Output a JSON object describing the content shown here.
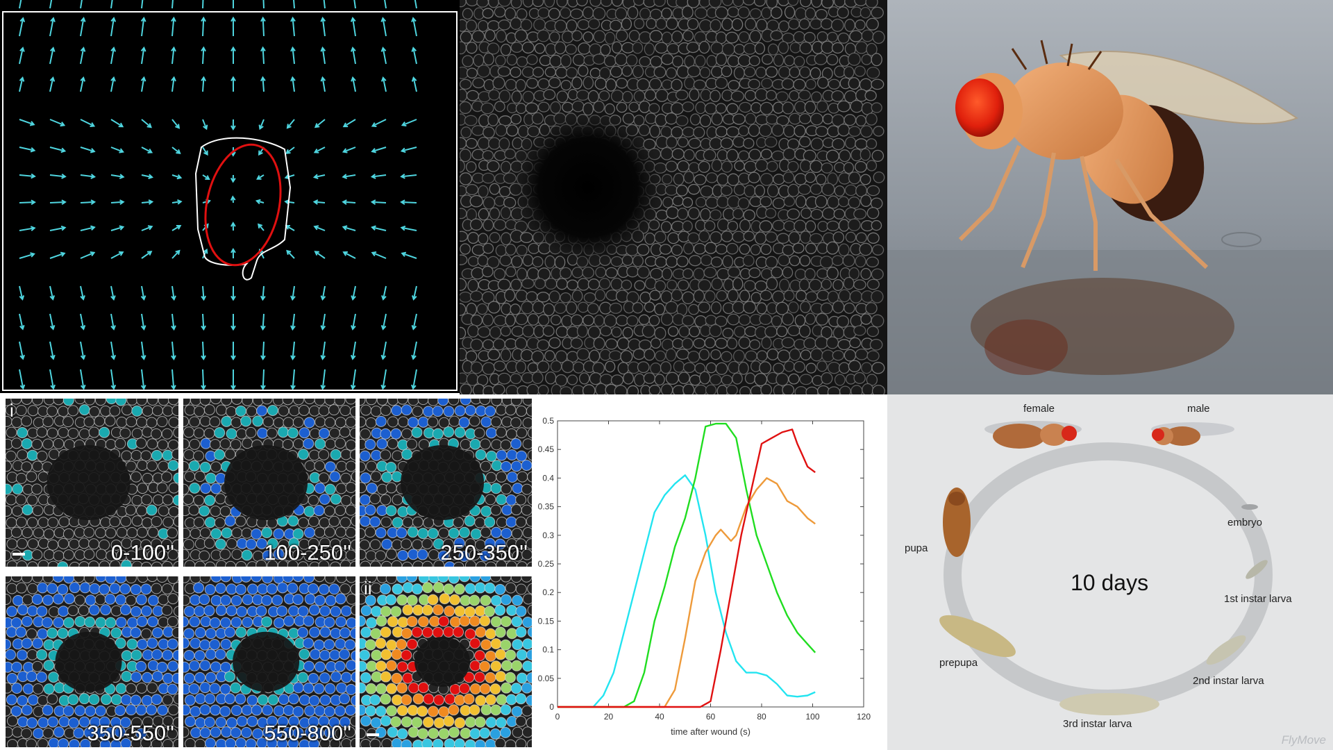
{
  "heatmap": {
    "panel_tag_i": "i",
    "panel_tag_ii": "ii",
    "tiles": [
      {
        "label": "0-100''"
      },
      {
        "label": "100-250''"
      },
      {
        "label": "250-350''"
      },
      {
        "label": "350-550''"
      },
      {
        "label": "550-800''"
      }
    ]
  },
  "chart_data": {
    "type": "line",
    "xlabel": "time after wound (s)",
    "ylabel": "",
    "xlim": [
      0,
      120
    ],
    "ylim": [
      0,
      0.5
    ],
    "xticks": [
      0,
      20,
      40,
      60,
      80,
      100,
      120
    ],
    "yticks": [
      0,
      0.05,
      0.1,
      0.15,
      0.2,
      0.25,
      0.3,
      0.35,
      0.4,
      0.45,
      0.5
    ],
    "grid": false,
    "series": [
      {
        "color": "#22e4f0",
        "x": [
          0,
          14,
          18,
          22,
          26,
          30,
          34,
          38,
          42,
          46,
          50,
          54,
          58,
          62,
          66,
          70,
          74,
          78,
          82,
          86,
          90,
          94,
          98,
          101
        ],
        "y": [
          0,
          0,
          0.02,
          0.06,
          0.13,
          0.2,
          0.27,
          0.34,
          0.37,
          0.39,
          0.405,
          0.38,
          0.3,
          0.2,
          0.13,
          0.08,
          0.06,
          0.06,
          0.055,
          0.04,
          0.02,
          0.018,
          0.02,
          0.026
        ]
      },
      {
        "color": "#20dd20",
        "x": [
          0,
          26,
          30,
          34,
          38,
          42,
          46,
          50,
          54,
          58,
          62,
          66,
          70,
          74,
          78,
          82,
          86,
          90,
          94,
          98,
          101
        ],
        "y": [
          0,
          0,
          0.01,
          0.06,
          0.15,
          0.21,
          0.28,
          0.33,
          0.4,
          0.49,
          0.495,
          0.495,
          0.47,
          0.38,
          0.3,
          0.25,
          0.2,
          0.16,
          0.13,
          0.11,
          0.095
        ]
      },
      {
        "color": "#ee9a3a",
        "x": [
          0,
          42,
          46,
          50,
          54,
          58,
          62,
          64,
          66,
          68,
          70,
          74,
          78,
          82,
          86,
          90,
          94,
          98,
          101
        ],
        "y": [
          0,
          0,
          0.03,
          0.12,
          0.22,
          0.27,
          0.3,
          0.31,
          0.3,
          0.29,
          0.3,
          0.35,
          0.38,
          0.4,
          0.39,
          0.36,
          0.35,
          0.33,
          0.32
        ]
      },
      {
        "color": "#e01010",
        "x": [
          0,
          56,
          60,
          64,
          68,
          72,
          76,
          80,
          84,
          88,
          92,
          94,
          96,
          98,
          101
        ],
        "y": [
          0,
          0,
          0.01,
          0.1,
          0.2,
          0.3,
          0.38,
          0.46,
          0.47,
          0.48,
          0.485,
          0.46,
          0.44,
          0.42,
          0.41
        ]
      }
    ]
  },
  "lifecycle": {
    "center_label": "10 days",
    "labels": {
      "female": "female",
      "male": "male",
      "embryo": "embryo",
      "first_instar": "1st instar larva",
      "second_instar": "2nd instar larva",
      "third_instar": "3rd instar larva",
      "prepupa": "prepupa",
      "pupa": "pupa"
    },
    "credit": "FlyMove"
  },
  "colors": {
    "vector_arrow": "#4fd6e0",
    "wound_outline": "#e01010",
    "wound_margin": "#ffffff",
    "heat_cyan": "#1aa9b0",
    "heat_blue": "#1c5fd0"
  }
}
